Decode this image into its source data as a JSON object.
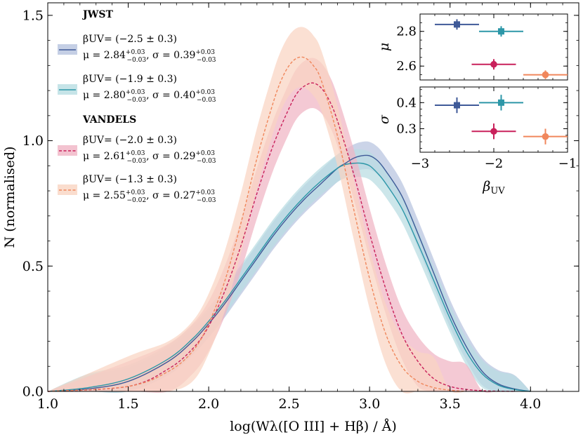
{
  "chart_data": {
    "type": "line",
    "xlabel": "log(Wλ([O III] + Hβ) / Å)",
    "ylabel": "N (normalised)",
    "xlim": [
      1.0,
      4.3
    ],
    "ylim": [
      0.0,
      1.55
    ],
    "xticks": [
      1.0,
      1.5,
      2.0,
      2.5,
      3.0,
      3.5,
      4.0
    ],
    "yticks": [
      0.0,
      0.5,
      1.0,
      1.5
    ],
    "xtick_labels": [
      "1.0",
      "1.5",
      "2.0",
      "2.5",
      "3.0",
      "3.5",
      "4.0"
    ],
    "ytick_labels": [
      "0.0",
      "0.5",
      "1.0",
      "1.5"
    ],
    "grid": false,
    "legend_position": "top-left",
    "legend_groups": [
      "JWST",
      "VANDELS"
    ],
    "series": [
      {
        "group": "JWST",
        "style": "solid",
        "color": "#3f5a98",
        "fill": "#b7c3df",
        "label_beta": "βUV= (−2.5 ± 0.3)",
        "label_mu": "μ = 2.84",
        "mu_err": [
          "+0.03",
          "−0.03"
        ],
        "label_sigma": ", σ = 0.39",
        "sigma_err": [
          "+0.03",
          "−0.03"
        ],
        "x": [
          1.0,
          1.25,
          1.5,
          1.75,
          1.9,
          2.0,
          2.1,
          2.2,
          2.3,
          2.4,
          2.5,
          2.6,
          2.7,
          2.8,
          2.85,
          2.9,
          2.95,
          3.0,
          3.05,
          3.1,
          3.2,
          3.3,
          3.4,
          3.5,
          3.6,
          3.7,
          3.8,
          3.9,
          4.0
        ],
        "y": [
          0.0,
          0.01,
          0.04,
          0.12,
          0.2,
          0.27,
          0.35,
          0.44,
          0.53,
          0.62,
          0.7,
          0.77,
          0.83,
          0.89,
          0.91,
          0.93,
          0.94,
          0.94,
          0.92,
          0.88,
          0.78,
          0.63,
          0.47,
          0.31,
          0.18,
          0.08,
          0.03,
          0.01,
          0.0
        ],
        "band": 0.055
      },
      {
        "group": "JWST",
        "style": "solid",
        "color": "#2d97a8",
        "fill": "#b8dde2",
        "label_beta": "βUV= (−1.9 ± 0.3)",
        "label_mu": "μ = 2.80",
        "mu_err": [
          "+0.03",
          "−0.03"
        ],
        "label_sigma": ", σ = 0.40",
        "sigma_err": [
          "+0.03",
          "−0.03"
        ],
        "x": [
          1.0,
          1.25,
          1.5,
          1.75,
          1.9,
          2.0,
          2.1,
          2.2,
          2.3,
          2.4,
          2.5,
          2.6,
          2.7,
          2.8,
          2.85,
          2.9,
          2.95,
          3.0,
          3.05,
          3.1,
          3.2,
          3.3,
          3.4,
          3.5,
          3.6,
          3.7,
          3.8,
          3.9,
          4.0
        ],
        "y": [
          0.0,
          0.015,
          0.05,
          0.13,
          0.21,
          0.28,
          0.36,
          0.45,
          0.54,
          0.63,
          0.71,
          0.78,
          0.84,
          0.89,
          0.905,
          0.91,
          0.91,
          0.9,
          0.87,
          0.83,
          0.73,
          0.59,
          0.44,
          0.29,
          0.16,
          0.07,
          0.025,
          0.008,
          0.0
        ],
        "band": 0.055
      },
      {
        "group": "VANDELS",
        "style": "dashed",
        "color": "#c9215b",
        "fill": "#f0b4c4",
        "label_beta": "βUV= (−2.0 ± 0.3)",
        "label_mu": "μ = 2.61",
        "mu_err": [
          "+0.03",
          "−0.03"
        ],
        "label_sigma": ", σ = 0.29",
        "sigma_err": [
          "+0.03",
          "−0.03"
        ],
        "x": [
          1.0,
          1.5,
          1.75,
          1.9,
          2.0,
          2.1,
          2.2,
          2.3,
          2.4,
          2.5,
          2.55,
          2.6,
          2.65,
          2.7,
          2.75,
          2.8,
          2.9,
          3.0,
          3.1,
          3.2,
          3.3,
          3.4,
          3.5,
          3.6,
          3.7,
          3.8,
          3.9
        ],
        "y": [
          0.0,
          0.02,
          0.09,
          0.17,
          0.26,
          0.4,
          0.58,
          0.79,
          0.98,
          1.13,
          1.19,
          1.22,
          1.23,
          1.21,
          1.16,
          1.08,
          0.87,
          0.63,
          0.41,
          0.23,
          0.12,
          0.05,
          0.02,
          0.008,
          0.003,
          0.001,
          0.0
        ],
        "band": 0.1
      },
      {
        "group": "VANDELS",
        "style": "dashed",
        "color": "#f0875c",
        "fill": "#f9d4c2",
        "label_beta": "βUV= (−1.3 ± 0.3)",
        "label_mu": "μ = 2.55",
        "mu_err": [
          "+0.03",
          "−0.02"
        ],
        "label_sigma": ", σ = 0.27",
        "sigma_err": [
          "+0.03",
          "−0.03"
        ],
        "x": [
          1.0,
          1.5,
          1.75,
          1.9,
          2.0,
          2.1,
          2.2,
          2.3,
          2.4,
          2.45,
          2.5,
          2.55,
          2.6,
          2.65,
          2.7,
          2.8,
          2.9,
          3.0,
          3.1,
          3.2,
          3.3,
          3.4,
          3.5,
          3.6
        ],
        "y": [
          0.0,
          0.02,
          0.08,
          0.16,
          0.27,
          0.44,
          0.67,
          0.93,
          1.15,
          1.24,
          1.3,
          1.33,
          1.33,
          1.3,
          1.24,
          1.02,
          0.73,
          0.45,
          0.23,
          0.1,
          0.04,
          0.015,
          0.005,
          0.0
        ],
        "band": 0.12
      }
    ],
    "inset": {
      "xlabel": "βUV",
      "xlim": [
        -3.0,
        -1.0
      ],
      "xticks": [
        -3,
        -2,
        -1
      ],
      "xtick_labels": [
        "−3",
        "−2",
        "−1"
      ],
      "top": {
        "ylabel": "μ",
        "ylim": [
          2.52,
          2.9
        ],
        "yticks": [
          2.6,
          2.8
        ],
        "ytick_labels": [
          "2.6",
          "2.8"
        ],
        "points": [
          {
            "x": -2.5,
            "xerr": 0.3,
            "y": 2.84,
            "yerr": 0.03,
            "marker": "square",
            "color": "#3f5a98"
          },
          {
            "x": -1.9,
            "xerr": 0.3,
            "y": 2.8,
            "yerr": 0.03,
            "marker": "square",
            "color": "#2d97a8"
          },
          {
            "x": -2.0,
            "xerr": 0.3,
            "y": 2.61,
            "yerr": 0.03,
            "marker": "circle",
            "color": "#c9215b"
          },
          {
            "x": -1.3,
            "xerr": 0.3,
            "y": 2.55,
            "yerr": 0.025,
            "marker": "circle",
            "color": "#f0875c"
          }
        ]
      },
      "bottom": {
        "ylabel": "σ",
        "ylim": [
          0.21,
          0.46
        ],
        "yticks": [
          0.3,
          0.4
        ],
        "ytick_labels": [
          "0.3",
          "0.4"
        ],
        "points": [
          {
            "x": -2.5,
            "xerr": 0.3,
            "y": 0.39,
            "yerr": 0.03,
            "marker": "square",
            "color": "#3f5a98"
          },
          {
            "x": -1.9,
            "xerr": 0.3,
            "y": 0.4,
            "yerr": 0.03,
            "marker": "square",
            "color": "#2d97a8"
          },
          {
            "x": -2.0,
            "xerr": 0.3,
            "y": 0.29,
            "yerr": 0.03,
            "marker": "circle",
            "color": "#c9215b"
          },
          {
            "x": -1.3,
            "xerr": 0.3,
            "y": 0.27,
            "yerr": 0.03,
            "marker": "circle",
            "color": "#f0875c"
          }
        ]
      }
    }
  }
}
